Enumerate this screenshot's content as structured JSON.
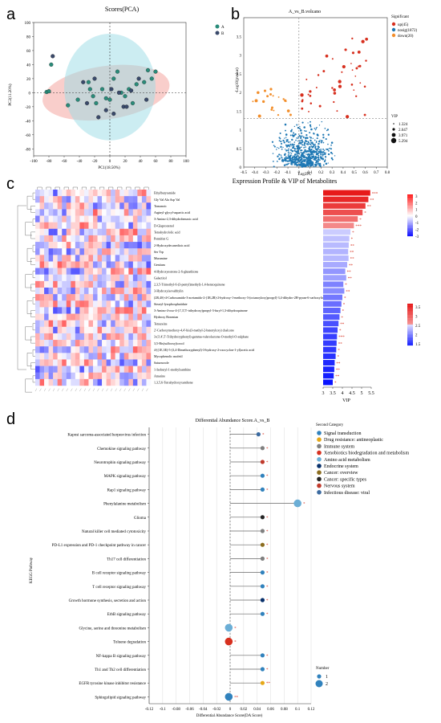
{
  "panel_labels": {
    "a": "a",
    "b": "b",
    "c": "c",
    "d": "d"
  },
  "colors": {
    "A": "#f4a6a0",
    "B": "#9adbe6",
    "up": "#d7301f",
    "nosig": "#1f78b4",
    "down": "#f28e2b"
  },
  "chart_data": [
    {
      "type": "scatter",
      "panel": "a",
      "title": "Scores(PCA)",
      "xlabel": "PC1(18.50%)",
      "ylabel": "PC2(11.20%)",
      "xlim": [
        -100,
        100
      ],
      "ylim": [
        -90,
        100
      ],
      "xticks": [
        "-100",
        "-80",
        "-60",
        "-40",
        "-20",
        "0",
        "20",
        "40",
        "60",
        "80",
        "100"
      ],
      "yticks": [
        "100",
        "80",
        "60",
        "40",
        "20",
        "0",
        "-20",
        "-40",
        "-60",
        "-80"
      ],
      "legend": [
        "A",
        "B"
      ],
      "series": [
        {
          "name": "A",
          "points": [
            [
              -83,
              1
            ],
            [
              -80,
              2
            ],
            [
              -77,
              40
            ],
            [
              -55,
              -18
            ],
            [
              -42,
              -10
            ],
            [
              -28,
              15
            ],
            [
              -26,
              5
            ],
            [
              -22,
              -5
            ],
            [
              -18,
              -15
            ],
            [
              -10,
              5
            ],
            [
              -5,
              -8
            ],
            [
              0,
              -10
            ],
            [
              5,
              20
            ],
            [
              10,
              30
            ],
            [
              15,
              0
            ],
            [
              20,
              -5
            ],
            [
              25,
              5
            ],
            [
              30,
              -15
            ],
            [
              35,
              12
            ],
            [
              45,
              15
            ],
            [
              50,
              32
            ],
            [
              55,
              20
            ],
            [
              60,
              30
            ]
          ]
        },
        {
          "name": "B",
          "points": [
            [
              -75,
              52
            ],
            [
              -35,
              15
            ],
            [
              -30,
              -15
            ],
            [
              -20,
              20
            ],
            [
              -15,
              -35
            ],
            [
              -5,
              -25
            ],
            [
              2,
              5
            ],
            [
              5,
              -30
            ],
            [
              12,
              0
            ],
            [
              18,
              -20
            ],
            [
              22,
              -20
            ],
            [
              28,
              3
            ],
            [
              38,
              20
            ],
            [
              48,
              -10
            ]
          ]
        }
      ]
    },
    {
      "type": "scatter",
      "panel": "b",
      "title": "A_vs_B.volcano",
      "xlabel": "Log2FC",
      "ylabel": "-Log10(pvalue)",
      "xlim": [
        -0.5,
        0.8
      ],
      "ylim": [
        0,
        4
      ],
      "xticks": [
        "-0.5",
        "-0.4",
        "-0.3",
        "-0.2",
        "-0.1",
        "0",
        "0.1",
        "0.2",
        "0.3",
        "0.4",
        "0.5",
        "0.6",
        "0.7",
        "0.8"
      ],
      "yticks": [
        "3.5",
        "3",
        "2.5",
        "2",
        "1.5",
        "1",
        "0.5",
        "0"
      ],
      "legend_title": "Significant",
      "legend": [
        "up(45)",
        "nosig(1872)",
        "down(20)"
      ],
      "vip_title": "VIP",
      "vip_levels": [
        "1.324",
        "2.647",
        "3.971",
        "5.294"
      ]
    },
    {
      "type": "bar",
      "panel": "c",
      "title": "Expression Profile & VIP of Metabolites",
      "xlabel": "VIP",
      "xlim": [
        3,
        5.5
      ],
      "xticks": [
        "3",
        "3.5",
        "4",
        "4.5",
        "5",
        "5.5"
      ],
      "heat_scale": [
        "3",
        "2",
        "1",
        "0",
        "-1",
        "-2",
        "-3"
      ],
      "vip_scale": [
        "3.5",
        "3",
        "2.5",
        "2",
        "1.5"
      ],
      "categories": [
        "Ethylbutyramide",
        "Gly Val Ala Asp Val",
        "Tomanoic",
        "Arginyl-glycyl-aspartic acid",
        "3-Amino-2,3-dihydrobenzoic acid",
        "D-Glaprostenol",
        "Tetrahydrofolic acid",
        "Pennifen G",
        "2-Hydroxydecanedioic acid",
        "Ser Trp",
        "Muramine",
        "Gentiam",
        "4-Hydroxyestrone-2-S-glutathione",
        "Galactitol",
        "2,3,5-Trimethyl-6-(3-pentyl)methyl)-1,4-benzoquinone",
        "3-Hydroxyisovalthylin",
        "(2R,4S)-4-Carboxamido-3-acetamido-2-(1R,2R)-2-hydroxy-1-methoxy-3-(octanoyloxy)propyl]-3,4-dihydro-2H-pyran-6-carboxylic acid",
        "Stearyl-lysophosphatidate",
        "3-Amino-4-oxo-4-(1',3',5'-trihydroxy)propyl-3-furyl-1,3-dihydroquinone",
        "Hydroxy Bosentan",
        "Tetrazeins",
        "2'-Carboxymethoxy-4,4'-bis(3-methyl-2-butenyloxy) chalcone",
        "3-(3',4',5'-Trihydroxyphenyl)-gamma-valerolactone-O-methyl-O-sulphate",
        "3,5-Bis(sulfooxy)torcol",
        "4-[(1E,3E)-5-(3,4-Dimethoxyphenyl)-3-hydroxy-2-oxocyclon-1-yl]acetic acid",
        "Mycophenolic mofetil",
        "Saturnorole",
        "1-Isobutyl-1-methylxanthine",
        "Amarine",
        "1,3,5,6-Tetrahydroxyxanthone"
      ],
      "values": [
        5.45,
        5.35,
        5.2,
        5.05,
        4.8,
        4.6,
        4.42,
        4.36,
        4.33,
        4.3,
        4.32,
        4.25,
        4.15,
        4.2,
        4.05,
        4.1,
        4.0,
        3.95,
        3.9,
        3.85,
        3.8,
        3.75,
        3.72,
        3.7,
        3.68,
        3.65,
        3.6,
        3.58,
        3.55,
        3.5
      ],
      "stars": [
        "***",
        "**",
        "**",
        "*",
        "*",
        "***",
        "*",
        "*",
        "**",
        "**",
        "**",
        "**",
        "**",
        "**",
        "*",
        "**",
        "*",
        "*",
        "*",
        "*",
        "**",
        "*",
        "***",
        "**",
        "*",
        "*",
        "**",
        "**",
        "**",
        "*"
      ]
    },
    {
      "type": "scatter",
      "panel": "d",
      "title": "Differential Abundance Score.A_vs_B",
      "xlabel": "Differential Abundance Score(DA Score)",
      "ylabel": "KEGG Pathway",
      "xlim": [
        -0.12,
        0.12
      ],
      "xticks": [
        "-0.12",
        "-0.1",
        "-0.08",
        "-0.06",
        "-0.04",
        "-0.02",
        "0",
        "0.02",
        "0.04",
        "0.06",
        "0.08",
        "0.1",
        "0.12"
      ],
      "legend_title": "Second Category",
      "legend": [
        "Signal transduction",
        "Drug resistance: antineoplastic",
        "Immune system",
        "Xenobiotics biodegradation and metabolism",
        "Amino acid metabolism",
        "Endocrine system",
        "Cancer: overview",
        "Cancer: specific types",
        "Nervous system",
        "Infectious disease: viral"
      ],
      "legend_colors": [
        "#3182bd",
        "#e6a817",
        "#808080",
        "#d7301f",
        "#6baed6",
        "#08306b",
        "#8c6d1f",
        "#252525",
        "#c0392b",
        "#3b6aa0"
      ],
      "size_title": "Number",
      "size_levels": [
        "1",
        "2"
      ],
      "categories": [
        "Kaposi sarcoma-associated herpesvirus infection",
        "Chemokine signaling pathway",
        "Neurotrophin signaling pathway",
        "MAPK signaling pathway",
        "Rap1 signaling pathway",
        "Phenylalanine metabolism",
        "Glioma",
        "Natural killer cell mediated cytotoxicity",
        "PD-L1 expression and PD-1 checkpoint pathway in cancer",
        "Th17 cell differentiation",
        "B cell receptor signaling pathway",
        "T cell receptor signaling pathway",
        "Growth hormone synthesis, secretion and action",
        "ErbB signaling pathway",
        "Glycine, serine and threonine metabolism",
        "Toluene degradation",
        "NF-kappa B signaling pathway",
        "Th1 and Th2 cell differentiation",
        "EGFR tyrosine kinase inhibitor resistance",
        "Sphingolipid signaling pathway"
      ],
      "values": [
        0.042,
        0.048,
        0.048,
        0.048,
        0.048,
        0.1,
        0.048,
        0.048,
        0.048,
        0.048,
        0.048,
        0.048,
        0.048,
        0.048,
        -0.002,
        -0.002,
        0.048,
        0.048,
        0.048,
        -0.002
      ],
      "sizes": [
        1,
        1,
        1,
        1,
        1,
        2,
        1,
        1,
        1,
        1,
        1,
        1,
        1,
        1,
        2,
        2,
        1,
        1,
        1,
        2
      ],
      "point_categories": [
        9,
        2,
        8,
        0,
        0,
        4,
        7,
        2,
        6,
        2,
        0,
        0,
        5,
        0,
        4,
        3,
        0,
        0,
        1,
        0
      ],
      "stars": [
        "*",
        "*",
        "*",
        "*",
        "*",
        "*",
        "*",
        "*",
        "*",
        "*",
        "*",
        "*",
        "*",
        "*",
        "*",
        "*",
        "*",
        "*",
        "**",
        "**"
      ]
    }
  ]
}
